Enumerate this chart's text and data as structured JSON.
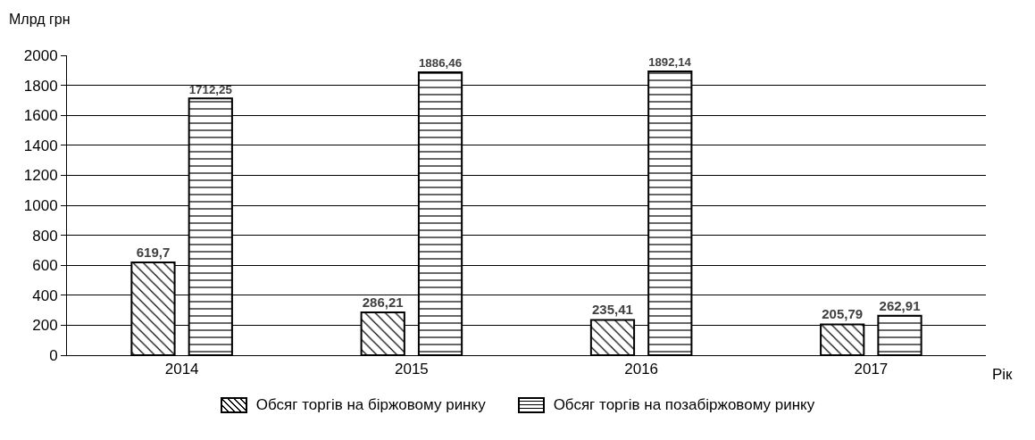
{
  "chart_data": {
    "type": "bar",
    "ylabel": "Млрд грн",
    "xlabel": "Рік",
    "categories": [
      "2014",
      "2015",
      "2016",
      "2017"
    ],
    "series": [
      {
        "name": "Обсяг торгів на біржовому ринку",
        "color": "#000000",
        "values": [
          619.7,
          286.21,
          235.41,
          205.79
        ],
        "value_labels": [
          "619,7",
          "286,21",
          "235,41",
          "205,79"
        ]
      },
      {
        "name": "Обсяг торгів на позабіржовому ринку",
        "color": "#000000",
        "values": [
          1712.25,
          1886.46,
          1892.14,
          262.91
        ],
        "value_labels": [
          "1712,25",
          "1886,46",
          "1892,14",
          "262,91"
        ]
      }
    ],
    "ylim": [
      0,
      2000
    ],
    "yticks": [
      0,
      200,
      400,
      600,
      800,
      1000,
      1200,
      1400,
      1600,
      1800,
      2000
    ],
    "grid": "y",
    "legend": "bottom"
  }
}
